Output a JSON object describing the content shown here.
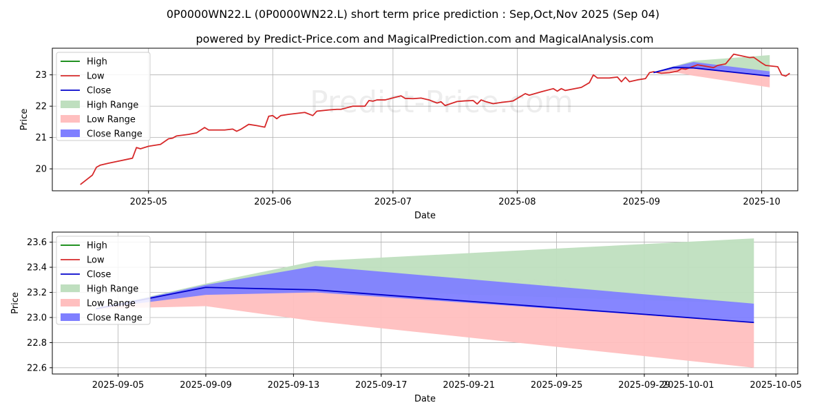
{
  "title": "0P0000WN22.L (0P0000WN22.L) short term price prediction : Sep,Oct,Nov 2025 (Sep 04)",
  "subtitle": "powered by Predict-Price.com and MagicalPrediction.com and MagicalAnalysis.com",
  "watermark": "Predict-Price.com",
  "colors": {
    "high": "#008000",
    "low": "#d62728",
    "close": "#0000cc",
    "high_range": "#bfdfbf",
    "low_range": "#ffbfbf",
    "close_range": "#7f7fff",
    "grid": "#b0b0b0"
  },
  "chart_data": [
    {
      "type": "line",
      "xlabel": "Date",
      "ylabel": "Price",
      "xlim": [
        "2025-04-07",
        "2025-10-10"
      ],
      "ylim": [
        19.3,
        23.85
      ],
      "grid": true,
      "legend_position": "top-left",
      "x_ticks": [
        "2025-05-01",
        "2025-06-01",
        "2025-07-01",
        "2025-08-01",
        "2025-09-01",
        "2025-10-01"
      ],
      "x_tick_labels": [
        "2025-05",
        "2025-06",
        "2025-07",
        "2025-08",
        "2025-09",
        "2025-10"
      ],
      "y_ticks": [
        20,
        21,
        22,
        23
      ],
      "y_tick_labels": [
        "20",
        "21",
        "22",
        "23"
      ],
      "legend": [
        "High",
        "Low",
        "Close",
        "High Range",
        "Low Range",
        "Close Range"
      ],
      "series": [
        {
          "name": "Low",
          "points": [
            [
              "2025-04-14",
              19.5
            ],
            [
              "2025-04-17",
              19.8
            ],
            [
              "2025-04-18",
              20.05
            ],
            [
              "2025-04-19",
              20.12
            ],
            [
              "2025-04-21",
              20.18
            ],
            [
              "2025-04-24",
              20.26
            ],
            [
              "2025-04-27",
              20.34
            ],
            [
              "2025-04-28",
              20.68
            ],
            [
              "2025-04-29",
              20.64
            ],
            [
              "2025-05-01",
              20.72
            ],
            [
              "2025-05-04",
              20.78
            ],
            [
              "2025-05-06",
              20.96
            ],
            [
              "2025-05-07",
              20.98
            ],
            [
              "2025-05-08",
              21.05
            ],
            [
              "2025-05-11",
              21.1
            ],
            [
              "2025-05-13",
              21.15
            ],
            [
              "2025-05-15",
              21.32
            ],
            [
              "2025-05-16",
              21.24
            ],
            [
              "2025-05-19",
              21.24
            ],
            [
              "2025-05-20",
              21.24
            ],
            [
              "2025-05-22",
              21.27
            ],
            [
              "2025-05-23",
              21.2
            ],
            [
              "2025-05-24",
              21.26
            ],
            [
              "2025-05-26",
              21.42
            ],
            [
              "2025-05-28",
              21.38
            ],
            [
              "2025-05-30",
              21.33
            ],
            [
              "2025-05-31",
              21.68
            ],
            [
              "2025-06-01",
              21.7
            ],
            [
              "2025-06-02",
              21.6
            ],
            [
              "2025-06-03",
              21.7
            ],
            [
              "2025-06-05",
              21.74
            ],
            [
              "2025-06-09",
              21.8
            ],
            [
              "2025-06-11",
              21.7
            ],
            [
              "2025-06-12",
              21.84
            ],
            [
              "2025-06-15",
              21.88
            ],
            [
              "2025-06-17",
              21.9
            ],
            [
              "2025-06-18",
              21.9
            ],
            [
              "2025-06-21",
              22.0
            ],
            [
              "2025-06-24",
              22.0
            ],
            [
              "2025-06-25",
              22.18
            ],
            [
              "2025-06-26",
              22.16
            ],
            [
              "2025-06-27",
              22.2
            ],
            [
              "2025-06-29",
              22.2
            ],
            [
              "2025-07-03",
              22.33
            ],
            [
              "2025-07-04",
              22.25
            ],
            [
              "2025-07-06",
              22.24
            ],
            [
              "2025-07-08",
              22.26
            ],
            [
              "2025-07-10",
              22.2
            ],
            [
              "2025-07-12",
              22.1
            ],
            [
              "2025-07-13",
              22.14
            ],
            [
              "2025-07-14",
              22.02
            ],
            [
              "2025-07-17",
              22.15
            ],
            [
              "2025-07-19",
              22.17
            ],
            [
              "2025-07-21",
              22.18
            ],
            [
              "2025-07-22",
              22.07
            ],
            [
              "2025-07-23",
              22.2
            ],
            [
              "2025-07-24",
              22.15
            ],
            [
              "2025-07-26",
              22.08
            ],
            [
              "2025-07-28",
              22.12
            ],
            [
              "2025-07-30",
              22.15
            ],
            [
              "2025-07-31",
              22.17
            ],
            [
              "2025-08-03",
              22.4
            ],
            [
              "2025-08-04",
              22.35
            ],
            [
              "2025-08-07",
              22.46
            ],
            [
              "2025-08-10",
              22.56
            ],
            [
              "2025-08-11",
              22.48
            ],
            [
              "2025-08-12",
              22.56
            ],
            [
              "2025-08-13",
              22.5
            ],
            [
              "2025-08-17",
              22.6
            ],
            [
              "2025-08-19",
              22.75
            ],
            [
              "2025-08-20",
              23.0
            ],
            [
              "2025-08-21",
              22.9
            ],
            [
              "2025-08-24",
              22.9
            ],
            [
              "2025-08-26",
              22.93
            ],
            [
              "2025-08-27",
              22.78
            ],
            [
              "2025-08-28",
              22.92
            ],
            [
              "2025-08-29",
              22.78
            ],
            [
              "2025-08-31",
              22.84
            ],
            [
              "2025-09-02",
              22.88
            ],
            [
              "2025-09-03",
              23.07
            ],
            [
              "2025-09-04",
              23.1
            ],
            [
              "2025-09-06",
              23.05
            ],
            [
              "2025-09-08",
              23.07
            ],
            [
              "2025-09-10",
              23.12
            ],
            [
              "2025-09-11",
              23.2
            ],
            [
              "2025-09-12",
              23.18
            ],
            [
              "2025-09-15",
              23.32
            ],
            [
              "2025-09-19",
              23.23
            ],
            [
              "2025-09-20",
              23.3
            ],
            [
              "2025-09-22",
              23.35
            ],
            [
              "2025-09-24",
              23.66
            ],
            [
              "2025-09-28",
              23.55
            ],
            [
              "2025-09-29",
              23.56
            ],
            [
              "2025-10-01",
              23.38
            ],
            [
              "2025-10-02",
              23.3
            ],
            [
              "2025-10-05",
              23.26
            ],
            [
              "2025-10-06",
              23.0
            ],
            [
              "2025-10-07",
              22.96
            ],
            [
              "2025-10-08",
              23.05
            ]
          ]
        },
        {
          "name": "Close",
          "points": [
            [
              "2025-09-04",
              23.07
            ],
            [
              "2025-09-09",
              23.24
            ],
            [
              "2025-09-14",
              23.22
            ],
            [
              "2025-10-03",
              22.96
            ]
          ]
        }
      ],
      "bands": [
        {
          "name": "High Range",
          "points": [
            [
              "2025-09-04",
              23.07,
              23.07
            ],
            [
              "2025-09-09",
              23.24,
              23.27
            ],
            [
              "2025-09-14",
              23.22,
              23.45
            ],
            [
              "2025-10-03",
              23.11,
              23.63
            ]
          ]
        },
        {
          "name": "Low Range",
          "points": [
            [
              "2025-09-04",
              23.07,
              23.07
            ],
            [
              "2025-09-09",
              23.09,
              23.24
            ],
            [
              "2025-09-14",
              22.97,
              23.22
            ],
            [
              "2025-10-03",
              22.6,
              22.96
            ]
          ]
        },
        {
          "name": "Close Range",
          "points": [
            [
              "2025-09-04",
              23.07,
              23.07
            ],
            [
              "2025-09-09",
              23.18,
              23.26
            ],
            [
              "2025-09-14",
              23.2,
              23.41
            ],
            [
              "2025-10-03",
              22.96,
              23.11
            ]
          ]
        }
      ]
    },
    {
      "type": "line",
      "xlabel": "Date",
      "ylabel": "Price",
      "xlim": [
        "2025-09-02",
        "2025-10-06"
      ],
      "ylim": [
        22.55,
        23.68
      ],
      "grid": true,
      "legend_position": "top-left",
      "x_ticks": [
        "2025-09-05",
        "2025-09-09",
        "2025-09-13",
        "2025-09-17",
        "2025-09-21",
        "2025-09-25",
        "2025-09-29",
        "2025-10-01",
        "2025-10-05"
      ],
      "x_tick_labels": [
        "2025-09-05",
        "2025-09-09",
        "2025-09-13",
        "2025-09-17",
        "2025-09-21",
        "2025-09-25",
        "2025-09-29",
        "2025-10-01",
        "2025-10-05"
      ],
      "y_ticks": [
        22.6,
        22.8,
        23.0,
        23.2,
        23.4,
        23.6
      ],
      "y_tick_labels": [
        "22.6",
        "22.8",
        "23.0",
        "23.2",
        "23.4",
        "23.6"
      ],
      "legend": [
        "High",
        "Low",
        "Close",
        "High Range",
        "Low Range",
        "Close Range"
      ],
      "series": [
        {
          "name": "Close",
          "points": [
            [
              "2025-09-04",
              23.07
            ],
            [
              "2025-09-09",
              23.24
            ],
            [
              "2025-09-14",
              23.22
            ],
            [
              "2025-10-04",
              22.96
            ]
          ]
        }
      ],
      "bands": [
        {
          "name": "High Range",
          "points": [
            [
              "2025-09-04",
              23.07,
              23.07
            ],
            [
              "2025-09-09",
              23.24,
              23.27
            ],
            [
              "2025-09-14",
              23.22,
              23.45
            ],
            [
              "2025-10-04",
              23.11,
              23.63
            ]
          ]
        },
        {
          "name": "Low Range",
          "points": [
            [
              "2025-09-04",
              23.07,
              23.07
            ],
            [
              "2025-09-09",
              23.09,
              23.24
            ],
            [
              "2025-09-14",
              22.97,
              23.22
            ],
            [
              "2025-10-04",
              22.6,
              22.96
            ]
          ]
        },
        {
          "name": "Close Range",
          "points": [
            [
              "2025-09-04",
              23.07,
              23.07
            ],
            [
              "2025-09-09",
              23.18,
              23.26
            ],
            [
              "2025-09-14",
              23.2,
              23.41
            ],
            [
              "2025-10-04",
              22.96,
              23.11
            ]
          ]
        }
      ]
    }
  ]
}
